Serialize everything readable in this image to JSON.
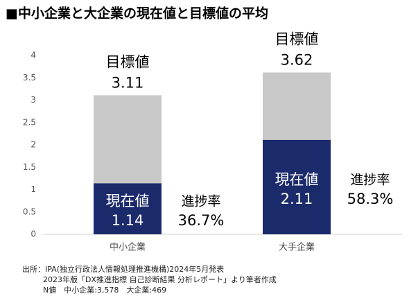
{
  "chart_data": {
    "type": "bar",
    "title": "■中小企業と大企業の現在値と目標値の平均",
    "categories": [
      "中小企業",
      "大手企業"
    ],
    "series": [
      {
        "name": "目標値",
        "color": "#c8c8c8",
        "values": [
          3.11,
          3.62
        ]
      },
      {
        "name": "現在値",
        "color": "#1b2a6b",
        "values": [
          1.14,
          2.11
        ]
      }
    ],
    "progress_label": "進捗率",
    "progress": [
      36.7,
      58.3
    ],
    "progress_labels": [
      "36.7%",
      "58.3%"
    ],
    "ylim": [
      0,
      4
    ],
    "yticks": [
      0,
      0.5,
      1,
      1.5,
      2,
      2.5,
      3,
      3.5,
      4
    ],
    "grid": false,
    "source": [
      "出所：IPA(独立行政法人情報処理推進機構)2024年5月発表",
      "2023年版「DX推進指標 自己診断結果 分析レポート」より筆者作成",
      "N値　中小企業:3,578　大企業:469"
    ]
  }
}
